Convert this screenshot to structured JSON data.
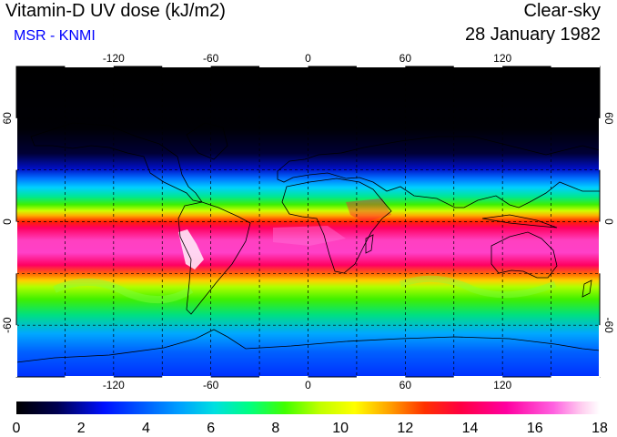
{
  "header": {
    "title": "Vitamin-D UV dose (kJ/m2)",
    "subtitle": "MSR - KNMI",
    "condition": "Clear-sky",
    "date": "28 January 1982"
  },
  "map": {
    "projection": "equirectangular",
    "lon_range": [
      -180,
      180
    ],
    "lat_range": [
      -90,
      90
    ],
    "grid_step_lon": 30,
    "grid_step_lat": 30,
    "lon_labels": [
      "-120",
      "-60",
      "0",
      "60",
      "120"
    ],
    "lon_label_values": [
      -120,
      -60,
      0,
      60,
      120
    ],
    "lat_labels": [
      "60",
      "0",
      "-60"
    ],
    "lat_label_values": [
      60,
      0,
      -60
    ],
    "colors": {
      "ocean_low": "#000000",
      "coast": "#000000",
      "grid": "#000000"
    }
  },
  "colorbar": {
    "labels": [
      "0",
      "2",
      "4",
      "6",
      "8",
      "10",
      "12",
      "14",
      "16",
      "18"
    ],
    "values": [
      0,
      2,
      4,
      6,
      8,
      10,
      12,
      14,
      16,
      18
    ],
    "min": 0,
    "max": 18,
    "stops": [
      "#000000",
      "#000050",
      "#0010ff",
      "#00a0ff",
      "#00e0e0",
      "#00ff80",
      "#40ff00",
      "#c0ff00",
      "#ffff00",
      "#ffa000",
      "#ff3000",
      "#ff0040",
      "#ff00a0",
      "#ff60e0",
      "#ffd0f0",
      "#ffffff"
    ]
  }
}
